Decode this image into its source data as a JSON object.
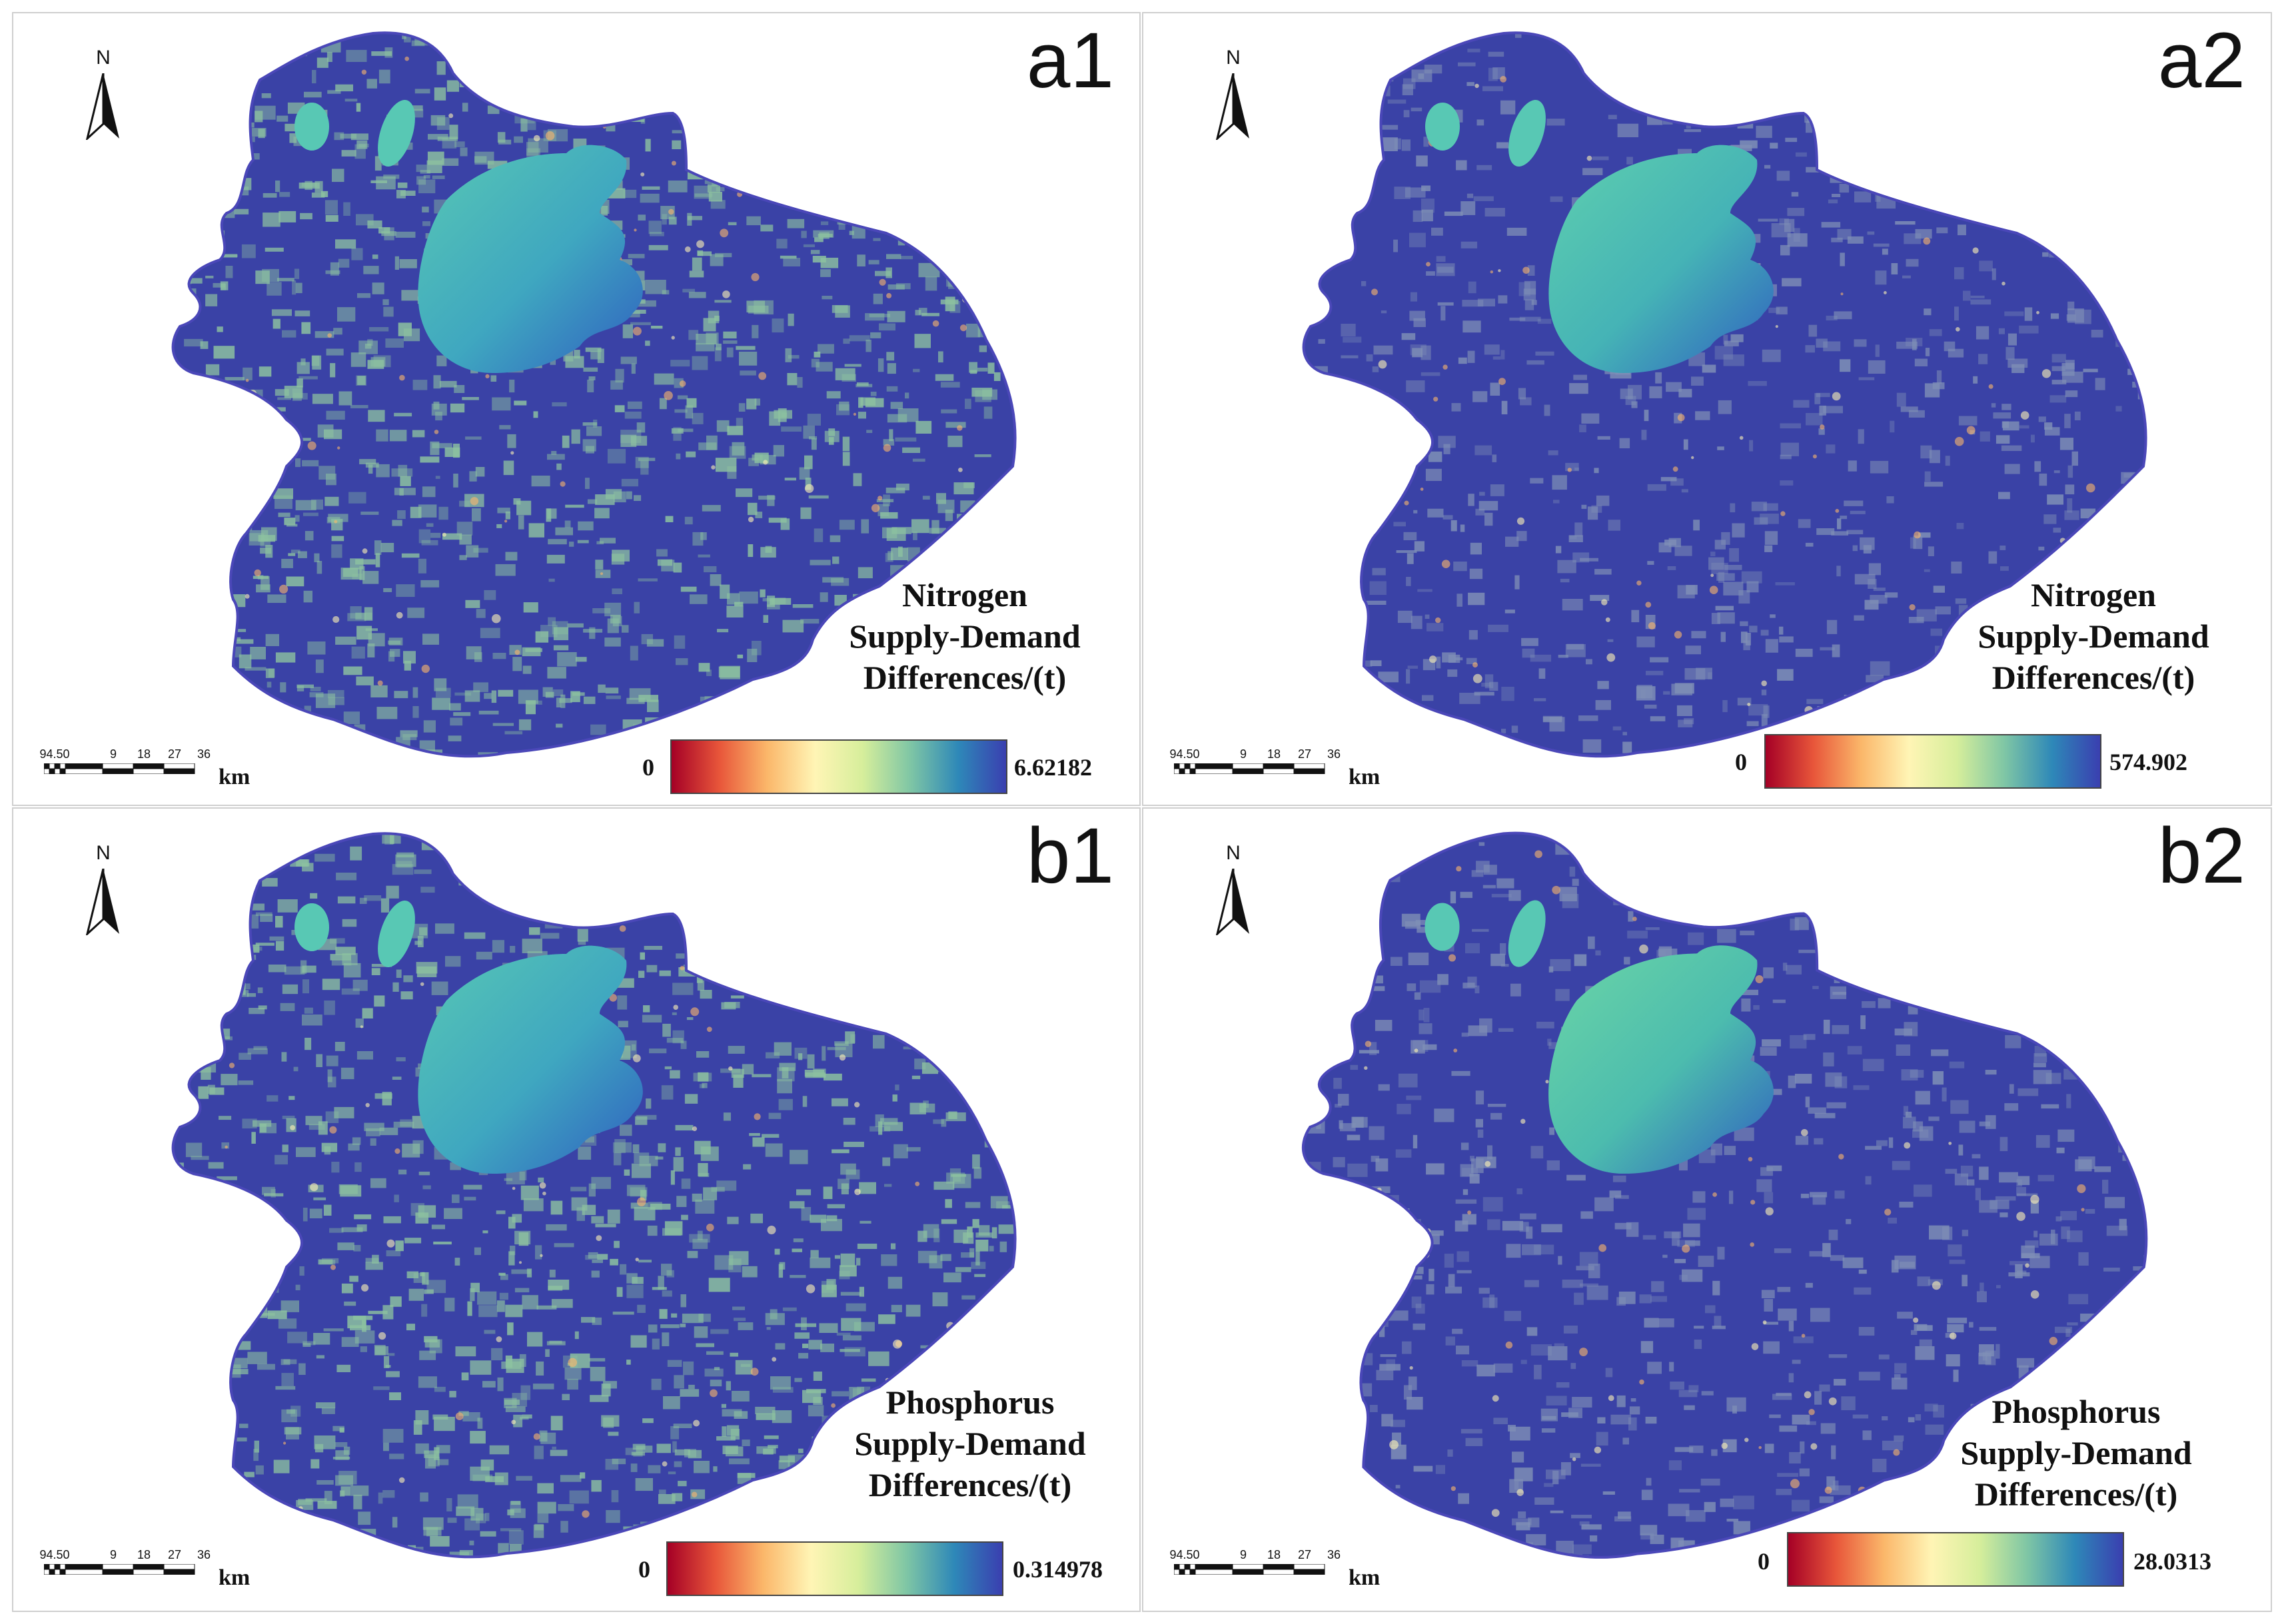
{
  "colormap": [
    "#a50026",
    "#e8563a",
    "#fbb76a",
    "#fff5b5",
    "#d6ee9b",
    "#7fc6a5",
    "#2e88b8",
    "#3a3fb0"
  ],
  "map_colors": {
    "base": "#3a42a6",
    "outline": "#4a47b8",
    "lake_light": "#58c8b4",
    "lake_dark": "#2f6fc0"
  },
  "scalebar": {
    "ticks": [
      "94.50",
      "9",
      "18",
      "27",
      "36"
    ],
    "unit": "km"
  },
  "north_arrow": {
    "letter": "N",
    "icon": "north-arrow-icon"
  },
  "panels": [
    {
      "id": "a1",
      "label": "a1",
      "legend_title": [
        "Nitrogen",
        "Supply-Demand",
        "Differences/(t)"
      ],
      "min": "0",
      "max": "6.62182",
      "texture": {
        "speckle": "#8dc2a0",
        "density": 0.55
      }
    },
    {
      "id": "a2",
      "label": "a2",
      "legend_title": [
        "Nitrogen",
        "Supply-Demand",
        "Differences/(t)"
      ],
      "min": "0",
      "max": "574.902",
      "texture": {
        "speckle": "#7f8fb6",
        "density": 0.35
      }
    },
    {
      "id": "b1",
      "label": "b1",
      "legend_title": [
        "Phosphorus",
        "Supply-Demand",
        "Differences/(t)"
      ],
      "min": "0",
      "max": "0.314978",
      "texture": {
        "speckle": "#8dc2a0",
        "density": 0.55
      }
    },
    {
      "id": "b2",
      "label": "b2",
      "legend_title": [
        "Phosphorus",
        "Supply-Demand",
        "Differences/(t)"
      ],
      "min": "0",
      "max": "28.0313",
      "texture": {
        "speckle": "#7f8fb6",
        "density": 0.35
      }
    }
  ]
}
